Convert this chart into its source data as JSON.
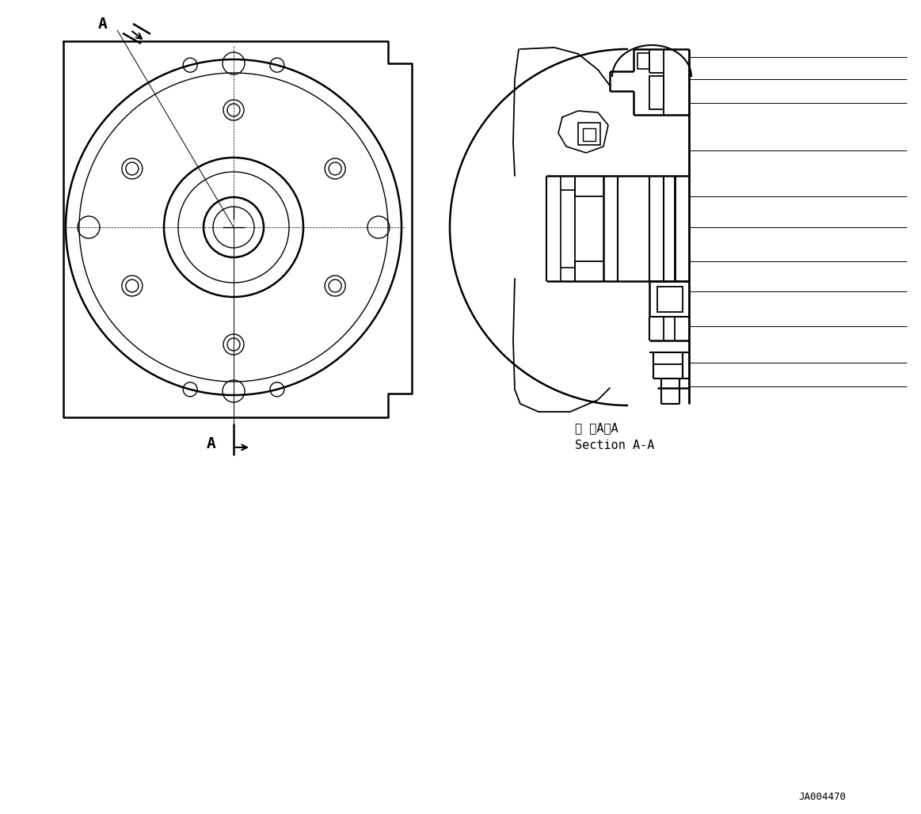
{
  "bg_color": "#ffffff",
  "line_color": "#000000",
  "fig_width": 11.63,
  "fig_height": 10.28,
  "dpi": 100,
  "part_id": "JA004470",
  "section_label_jp": "断 面A－A",
  "section_label_en": "Section A-A"
}
